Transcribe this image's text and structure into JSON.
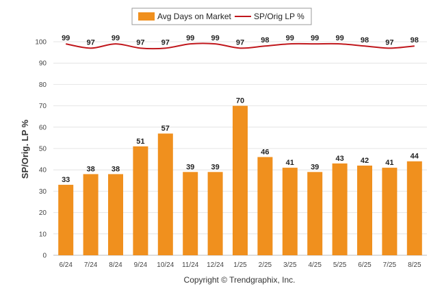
{
  "chart_data": {
    "type": "bar",
    "categories": [
      "6/24",
      "7/24",
      "8/24",
      "9/24",
      "10/24",
      "11/24",
      "12/24",
      "1/25",
      "2/25",
      "3/25",
      "4/25",
      "5/25",
      "6/25",
      "7/25",
      "8/25"
    ],
    "series": [
      {
        "name": "Avg Days on Market",
        "type": "bar",
        "color": "#f0901e",
        "values": [
          33,
          38,
          38,
          51,
          57,
          39,
          39,
          70,
          46,
          41,
          39,
          43,
          42,
          41,
          44
        ]
      },
      {
        "name": "SP/Orig LP %",
        "type": "line",
        "color": "#c0161b",
        "values": [
          99,
          97,
          99,
          97,
          97,
          99,
          99,
          97,
          98,
          99,
          99,
          99,
          98,
          97,
          98
        ]
      }
    ],
    "ylabel": "SP/Orig. LP %",
    "ylim": [
      0,
      100
    ],
    "yticks": [
      0,
      10,
      20,
      30,
      40,
      50,
      60,
      70,
      80,
      90,
      100
    ],
    "grid": true,
    "legend": "top-center"
  },
  "footer": {
    "copyright": "Copyright © Trendgraphix, Inc."
  }
}
